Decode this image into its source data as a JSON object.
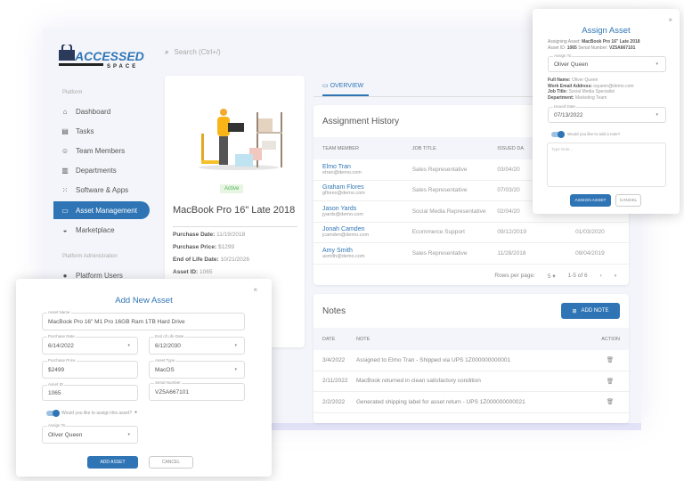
{
  "brand": {
    "logo_text": "ACCESSED",
    "logo_sub": "SPACE"
  },
  "search": {
    "placeholder": "Search (Ctrl+/)"
  },
  "sidebar": {
    "section1": "Platform",
    "items": [
      {
        "label": "Dashboard",
        "icon": "home-icon"
      },
      {
        "label": "Tasks",
        "icon": "task-icon"
      },
      {
        "label": "Team Members",
        "icon": "team-icon"
      },
      {
        "label": "Departments",
        "icon": "building-icon"
      },
      {
        "label": "Software & Apps",
        "icon": "apps-icon"
      },
      {
        "label": "Asset Management",
        "icon": "monitor-icon",
        "active": true
      },
      {
        "label": "Marketplace",
        "icon": "basket-icon"
      }
    ],
    "section2": "Platform Administration",
    "admin_items": [
      {
        "label": "Platform Users",
        "icon": "users-icon"
      }
    ]
  },
  "product": {
    "status": "Active",
    "title": "MacBook Pro 16\" Late 2018",
    "details": [
      {
        "k": "Purchase Date:",
        "v": "11/19/2018"
      },
      {
        "k": "Purchase Price:",
        "v": "$1299"
      },
      {
        "k": "End of Life Date:",
        "v": "10/21/2026"
      },
      {
        "k": "Asset ID:",
        "v": "1065"
      }
    ]
  },
  "tabs": [
    {
      "label": "OVERVIEW",
      "active": true
    }
  ],
  "history": {
    "title": "Assignment History",
    "columns": [
      "TEAM MEMBER",
      "JOB TITLE",
      "ISSUED DA",
      ""
    ],
    "rows": [
      {
        "name": "Elmo Tran",
        "email": "etran@demo.com",
        "job": "Sales Representative",
        "issued": "03/04/20",
        "returned": ""
      },
      {
        "name": "Graham Flores",
        "email": "gflores@demo.com",
        "job": "Sales Representative",
        "issued": "07/03/20",
        "returned": ""
      },
      {
        "name": "Jason Yards",
        "email": "jyards@demo.com",
        "job": "Social Media Representative",
        "issued": "02/04/20",
        "returned": ""
      },
      {
        "name": "Jonah Camden",
        "email": "jcamden@demo.com",
        "job": "Ecommerce Support",
        "issued": "09/12/2019",
        "returned": "01/03/2020"
      },
      {
        "name": "Amy Smith",
        "email": "asmith@demo.com",
        "job": "Sales Representative",
        "issued": "11/28/2018",
        "returned": "09/04/2019"
      }
    ],
    "rows_per_page_label": "Rows per page:",
    "rows_per_page": "5",
    "range": "1-5 of 6"
  },
  "notes": {
    "title": "Notes",
    "add_label": "ADD NOTE",
    "columns": [
      "DATE",
      "NOTE",
      "ACTION"
    ],
    "rows": [
      {
        "date": "3/4/2022",
        "note": "Assigned to Elmo Tran - Shipped via UPS 1Z000000000001"
      },
      {
        "date": "2/11/2022",
        "note": "MacBook returned in clean satisfactory condition"
      },
      {
        "date": "2/2/2022",
        "note": "Generated shipping label for asset return - UPS 1Z000000000021"
      }
    ]
  },
  "assign_modal": {
    "title": "Assign Asset",
    "assigning_label": "Assigning Asset:",
    "assigning_value": "MacBook Pro 16\" Late 2018",
    "id_label": "Asset ID:",
    "id_value": "1065",
    "serial_label": "Serial Number:",
    "serial_value": "VZ5A667101",
    "assign_to_label": "Assign To",
    "assign_to": "Oliver Queen",
    "info": [
      {
        "k": "Full Name:",
        "v": "Oliver Queen"
      },
      {
        "k": "Work Email Address:",
        "v": "oqueen@demo.com"
      },
      {
        "k": "Job Title:",
        "v": "Social Media Specialist"
      },
      {
        "k": "Department:",
        "v": "Marketing Team"
      }
    ],
    "issued_label": "Issued Date",
    "issued": "07/13/2022",
    "toggle_label": "Would you like to add a note?",
    "toggle_on": true,
    "note_placeholder": "Type Note...",
    "submit": "ASSIGN ASSET",
    "cancel": "CANCEL"
  },
  "add_modal": {
    "title": "Add New Asset",
    "fields": {
      "name": {
        "label": "Asset Name",
        "value": "MacBook Pro 16\" M1 Pro 16GB Ram 1TB Hard Drive"
      },
      "purchase_date": {
        "label": "Purchase Date",
        "value": "6/14/2022"
      },
      "eol": {
        "label": "End of Life Date",
        "value": "6/12/2030"
      },
      "price": {
        "label": "Purchase Price",
        "value": "$2499"
      },
      "type": {
        "label": "Asset Type",
        "value": "MacOS"
      },
      "id": {
        "label": "Asset ID",
        "value": "1065"
      },
      "serial": {
        "label": "Serial Number",
        "value": "VZ5A667101"
      },
      "assign": {
        "label": "Assign To",
        "value": "Oliver Queen"
      }
    },
    "toggle_label": "Would you like to assign this asset?",
    "toggle_on": true,
    "submit": "ADD ASSET",
    "cancel": "CANCEL"
  },
  "colors": {
    "accent": "#2f75b5",
    "bg": "#f4f5fa",
    "active_badge": "#5bb25a"
  }
}
